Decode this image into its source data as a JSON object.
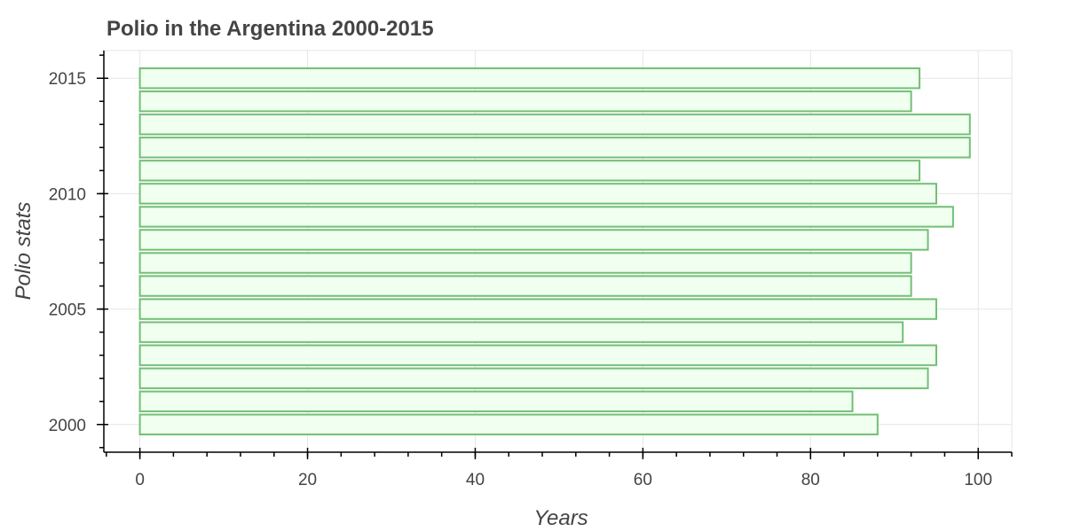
{
  "chart_data": {
    "type": "bar",
    "orientation": "horizontal",
    "title": "Polio in the Argentina 2000-2015",
    "xlabel": "Years",
    "ylabel": "Polio stats",
    "categories": [
      2000,
      2001,
      2002,
      2003,
      2004,
      2005,
      2006,
      2007,
      2008,
      2009,
      2010,
      2011,
      2012,
      2013,
      2014,
      2015
    ],
    "values": [
      88,
      85,
      94,
      95,
      91,
      95,
      92,
      92,
      94,
      97,
      95,
      93,
      99,
      99,
      92,
      93
    ],
    "xlim": [
      -4.3,
      104
    ],
    "ylim": [
      1998.8,
      2016.2
    ],
    "x_major_ticks": [
      0,
      20,
      40,
      60,
      80,
      100
    ],
    "x_minor_step": 4,
    "y_major_ticks": [
      2000,
      2005,
      2010,
      2015
    ],
    "y_minor_step": 1,
    "grid": true,
    "colors": {
      "bar_fill": "#f0fff0",
      "bar_stroke": "#72bf75",
      "grid": "#e5e5e5",
      "text": "#444444",
      "axis": "#000000"
    }
  }
}
